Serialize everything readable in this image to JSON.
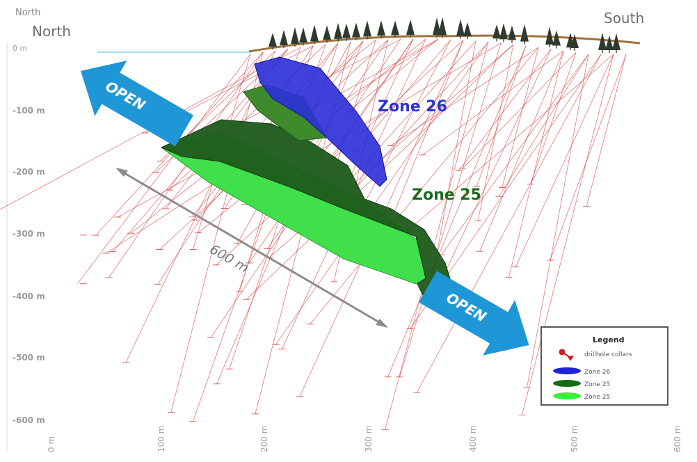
{
  "labels": {
    "north_small": "North",
    "north": "North",
    "south": "South",
    "zone26": "Zone 26",
    "zone25": "Zone 25",
    "open_left": "OPEN",
    "open_right": "OPEN",
    "distance": "600 m"
  },
  "depth_axis": {
    "ticks": [
      "0 m",
      "-100 m",
      "-200 m",
      "-300 m",
      "-400 m",
      "-500 m",
      "-600 m"
    ]
  },
  "distance_axis": {
    "ticks": [
      "0 m",
      "100 m",
      "200 m",
      "300 m",
      "400 m",
      "500 m",
      "600 m"
    ]
  },
  "legend": {
    "title": "Legend",
    "items": [
      {
        "label": "drillhole collars",
        "symbol": "collar-icon",
        "color": "#d11f1f"
      },
      {
        "label": "Zone 26",
        "symbol": "ellipse",
        "color": "#1f22d6"
      },
      {
        "label": "Zone 25",
        "symbol": "ellipse",
        "color": "#176b17"
      },
      {
        "label": "Zone 25",
        "symbol": "ellipse",
        "color": "#38f038"
      }
    ]
  },
  "colors": {
    "zone26": "#2a2fd8",
    "zone25_dark": "#1d5a1a",
    "zone25_light": "#3fe04a",
    "open_arrow": "#1f97d6",
    "drillhole": "#d44040",
    "surface": "#a0703c",
    "zone26_label": "#2c35d0",
    "zone25_label": "#1d6a1d"
  }
}
